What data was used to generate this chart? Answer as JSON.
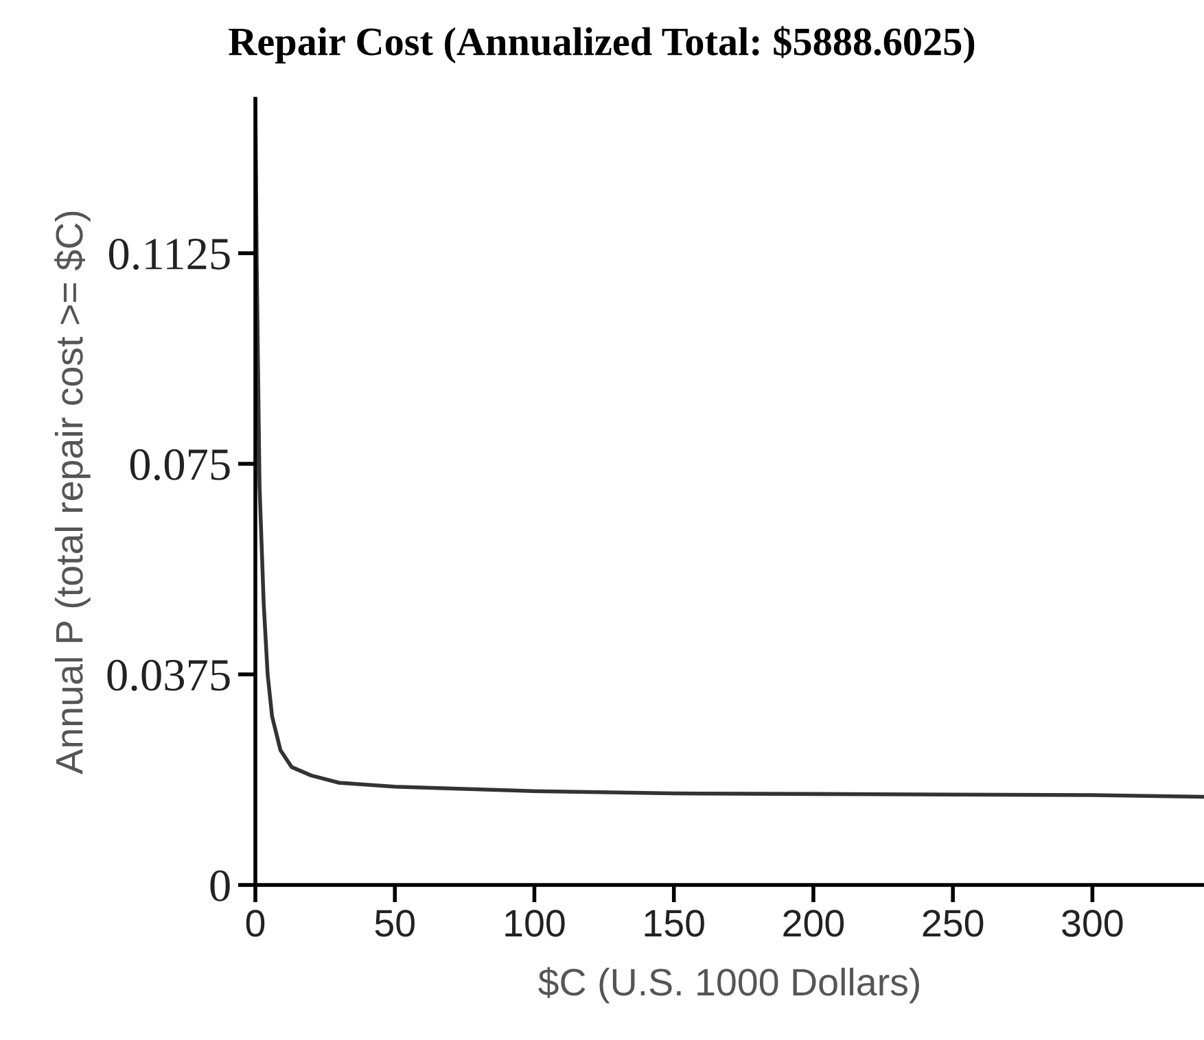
{
  "chart_data": {
    "type": "line",
    "title": "Repair Cost (Annualized Total: $5888.6025)",
    "xlabel": "$C (U.S. 1000 Dollars)",
    "ylabel": "Annual P (total repair cost >= $C)",
    "series": [
      {
        "color": "#333333",
        "x": [
          0,
          0.5,
          1.5,
          3,
          4.4,
          6,
          9,
          13,
          20,
          30,
          50,
          75,
          100,
          150,
          200,
          250,
          300,
          340
        ],
        "values": [
          0.14,
          0.11,
          0.071,
          0.05,
          0.0375,
          0.03,
          0.024,
          0.021,
          0.0195,
          0.0182,
          0.0175,
          0.0171,
          0.0167,
          0.0163,
          0.0162,
          0.0161,
          0.016,
          0.0157
        ]
      }
    ],
    "xlim": [
      0,
      340
    ],
    "ylim": [
      0,
      0.14
    ],
    "xticks": [
      0,
      50,
      100,
      150,
      200,
      250,
      300
    ],
    "yticks": [
      0,
      0.0375,
      0.075,
      0.1125
    ],
    "grid": false,
    "legend": false,
    "marker": "none",
    "line_style": "solid"
  }
}
